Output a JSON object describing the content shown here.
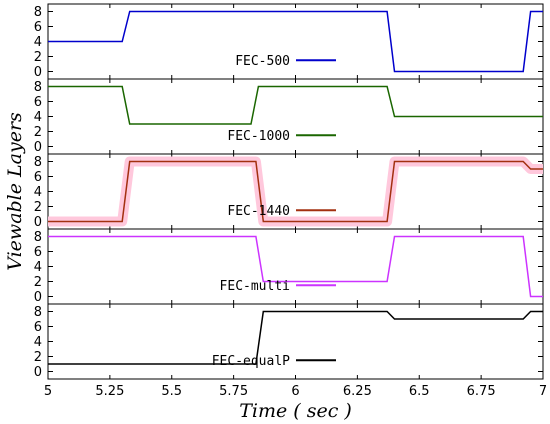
{
  "chart_data": {
    "type": "line",
    "xlabel": "Time ( sec )",
    "ylabel": "Viewable Layers",
    "xlim": [
      5,
      7
    ],
    "ylim": [
      -1,
      9
    ],
    "x_ticks": [
      5,
      5.25,
      5.5,
      5.75,
      6,
      6.25,
      6.5,
      6.75,
      7
    ],
    "x_tick_labels": [
      "5",
      "5.25",
      "5.5",
      "5.75",
      "6",
      "6.25",
      "6.5",
      "6.75",
      "7"
    ],
    "y_ticks": [
      0,
      2,
      4,
      6,
      8
    ],
    "y_tick_labels": [
      "0",
      "2",
      "4",
      "6",
      "8"
    ],
    "grid": false,
    "legend_placement": "lower-center",
    "panels": [
      {
        "legend": "FEC-500",
        "color": "#0000cc",
        "points": [
          [
            5,
            4
          ],
          [
            5.3,
            4
          ],
          [
            5.33,
            8
          ],
          [
            6.37,
            8
          ],
          [
            6.4,
            0
          ],
          [
            6.92,
            0
          ],
          [
            6.95,
            8
          ],
          [
            7,
            8
          ]
        ]
      },
      {
        "legend": "FEC-1000",
        "color": "#1a6600",
        "points": [
          [
            5,
            8
          ],
          [
            5.3,
            8
          ],
          [
            5.33,
            3
          ],
          [
            5.82,
            3
          ],
          [
            5.85,
            8
          ],
          [
            6.37,
            8
          ],
          [
            6.4,
            4
          ],
          [
            7,
            4
          ]
        ]
      },
      {
        "legend": "FEC-1440",
        "color": "#a33010",
        "band_color": "#ffc8dc",
        "points": [
          [
            5,
            0
          ],
          [
            5.3,
            0
          ],
          [
            5.33,
            8
          ],
          [
            5.84,
            8
          ],
          [
            5.87,
            0
          ],
          [
            6.37,
            0
          ],
          [
            6.4,
            8
          ],
          [
            6.92,
            8
          ],
          [
            6.95,
            7
          ],
          [
            7,
            7
          ]
        ]
      },
      {
        "legend": "FEC-multi",
        "color": "#cc33ff",
        "points": [
          [
            5,
            8
          ],
          [
            5.84,
            8
          ],
          [
            5.87,
            2
          ],
          [
            6.37,
            2
          ],
          [
            6.4,
            8
          ],
          [
            6.92,
            8
          ],
          [
            6.95,
            0
          ],
          [
            7,
            0
          ]
        ]
      },
      {
        "legend": "FEC-equalP",
        "color": "#000000",
        "points": [
          [
            5,
            1
          ],
          [
            5.84,
            1
          ],
          [
            5.87,
            8
          ],
          [
            6.37,
            8
          ],
          [
            6.4,
            7
          ],
          [
            6.92,
            7
          ],
          [
            6.95,
            8
          ],
          [
            7,
            8
          ]
        ]
      }
    ]
  }
}
